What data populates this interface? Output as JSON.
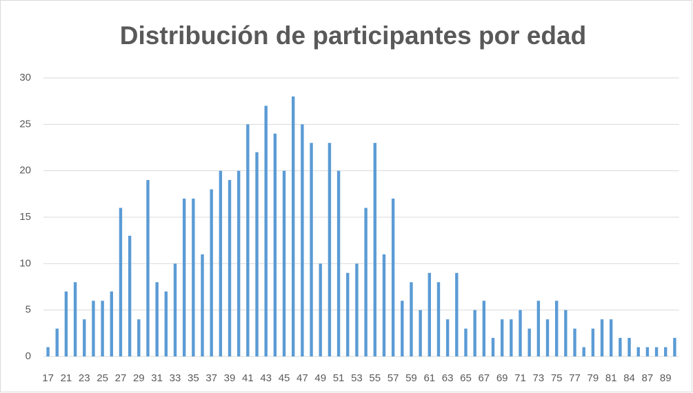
{
  "chart_data": {
    "type": "bar",
    "title": "Distribución de participantes por edad",
    "categories": [
      "17",
      null,
      "21",
      null,
      "23",
      null,
      "25",
      null,
      "27",
      null,
      "29",
      null,
      "31",
      null,
      "33",
      null,
      "35",
      null,
      "37",
      null,
      "39",
      null,
      "41",
      null,
      "43",
      null,
      "45",
      null,
      "47",
      null,
      "49",
      null,
      "51",
      null,
      "53",
      null,
      "55",
      null,
      "57",
      null,
      "59",
      null,
      "61",
      null,
      "63",
      null,
      "65",
      null,
      "67",
      null,
      "69",
      null,
      "71",
      null,
      "73",
      null,
      "75",
      null,
      "77",
      null,
      "79",
      null,
      "81",
      null,
      "84",
      null,
      "87",
      null,
      "89",
      null
    ],
    "values": [
      1,
      3,
      7,
      8,
      4,
      6,
      6,
      7,
      16,
      13,
      4,
      19,
      8,
      7,
      10,
      17,
      17,
      11,
      18,
      20,
      19,
      20,
      25,
      22,
      27,
      24,
      20,
      28,
      25,
      23,
      10,
      23,
      20,
      9,
      10,
      16,
      23,
      11,
      17,
      6,
      8,
      5,
      9,
      8,
      4,
      9,
      3,
      5,
      6,
      2,
      4,
      4,
      5,
      3,
      6,
      4,
      6,
      5,
      3,
      1,
      3,
      4,
      4,
      2,
      2,
      1,
      1,
      1,
      1,
      2
    ],
    "color": "#5b9bd5",
    "ylim": [
      0,
      30
    ],
    "yticks": [
      0,
      5,
      10,
      15,
      20,
      25,
      30
    ],
    "grid": true
  }
}
